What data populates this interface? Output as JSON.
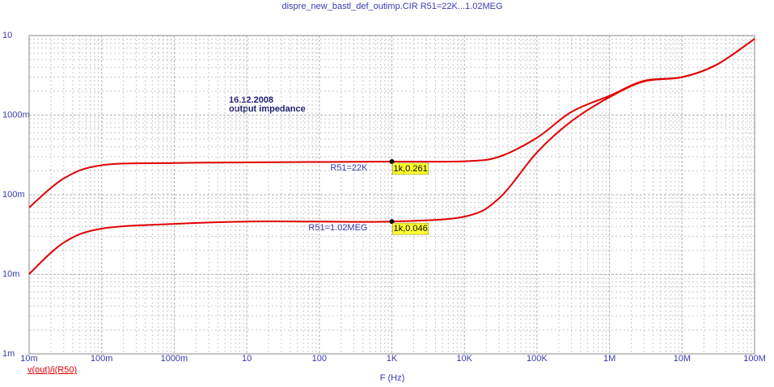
{
  "chart_data": {
    "type": "line",
    "title": "dispre_new_bastl_def_outimp.CIR R51=22K...1.02MEG",
    "x_label": "F (Hz)",
    "y_label": "v(out)/i(R50)",
    "annotations": [
      "16.12.2008",
      "output impedance"
    ],
    "x_log": true,
    "y_log": true,
    "grid": true,
    "xlim": [
      0.01,
      100000000
    ],
    "ylim": [
      0.001,
      10
    ],
    "xticks": [
      {
        "value": 0.01,
        "label": "10m"
      },
      {
        "value": 0.1,
        "label": "100m"
      },
      {
        "value": 1,
        "label": "1000m"
      },
      10,
      100,
      {
        "value": 1000,
        "label": "1K"
      },
      {
        "value": 10000,
        "label": "10K"
      },
      {
        "value": 100000,
        "label": "100K"
      },
      {
        "value": 1000000,
        "label": "1M"
      },
      {
        "value": 10000000,
        "label": "10M"
      },
      {
        "value": 100000000,
        "label": "100M"
      }
    ],
    "yticks": [
      {
        "value": 0.001,
        "label": "1m"
      },
      {
        "value": 0.01,
        "label": "10m"
      },
      {
        "value": 0.1,
        "label": "100m"
      },
      {
        "value": 1,
        "label": "1000m"
      },
      10
    ],
    "x": [
      0.01,
      0.03,
      0.1,
      1,
      10,
      100,
      1000,
      10000,
      30000,
      100000,
      300000,
      1000000,
      3000000,
      10000000,
      30000000,
      100000000
    ],
    "series": [
      {
        "name": "R51=22K",
        "color": "#e00000",
        "values": [
          0.069,
          0.16,
          0.235,
          0.25,
          0.255,
          0.258,
          0.261,
          0.263,
          0.3,
          0.52,
          1.1,
          1.75,
          2.7,
          3.0,
          4.3,
          9.1
        ],
        "marker": {
          "x": 1000,
          "y": 0.261,
          "label": "1k,0.261"
        }
      },
      {
        "name": "R51=1.02MEG",
        "color": "#e00000",
        "values": [
          0.0101,
          0.025,
          0.0375,
          0.043,
          0.046,
          0.046,
          0.046,
          0.053,
          0.09,
          0.34,
          0.84,
          1.68,
          2.65,
          3.0,
          4.3,
          9.1
        ],
        "marker": {
          "x": 1000,
          "y": 0.046,
          "label": "1k,0.046"
        }
      }
    ]
  }
}
